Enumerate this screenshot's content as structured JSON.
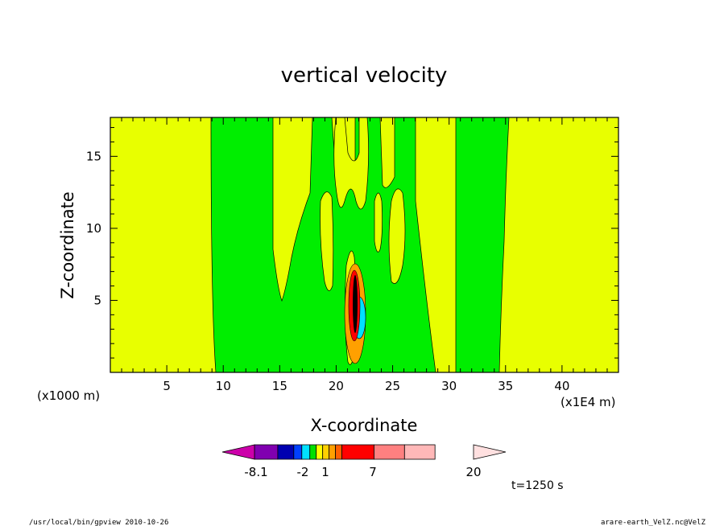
{
  "chart_data": {
    "type": "heatmap",
    "title": "vertical velocity",
    "xlabel": "X-coordinate",
    "ylabel": "Z-coordinate",
    "x_unit_left": "(x1000 m)",
    "x_unit_right": "(x1E4 m)",
    "xlim": [
      0,
      45
    ],
    "ylim": [
      0,
      17.7
    ],
    "x_ticks": [
      5,
      10,
      15,
      20,
      25,
      30,
      35,
      40
    ],
    "y_ticks": [
      5,
      10,
      15
    ],
    "colorbar": {
      "labels": [
        "-8.1",
        "-2",
        "1",
        "7",
        "20"
      ],
      "colors": [
        "#cc00aa",
        "#8000b0",
        "#0000b0",
        "#0040ff",
        "#00e0ff",
        "#00e000",
        "#ffff00",
        "#ffd000",
        "#ffa000",
        "#ff6000",
        "#ff0000",
        "#ff8080",
        "#ffb8b8",
        "#ffe0e0"
      ]
    },
    "regions": [
      {
        "value_class": "weak positive",
        "color": "#e8ff00",
        "x_range": [
          0,
          9.2
        ]
      },
      {
        "value_class": "weak negative",
        "color": "#00ee00",
        "x_range": [
          9.2,
          14.5
        ]
      },
      {
        "value_class": "weak positive",
        "color": "#e8ff00",
        "x_range": [
          14.5,
          19.5
        ],
        "z_range": [
          5,
          17.7
        ]
      },
      {
        "value_class": "weak negative",
        "color": "#00ee00",
        "x_range": [
          19.5,
          29
        ],
        "note": "with embedded yellow lobes"
      },
      {
        "value_class": "weak positive",
        "color": "#e8ff00",
        "x_range": [
          29,
          30.8
        ]
      },
      {
        "value_class": "weak negative",
        "color": "#00ee00",
        "x_range": [
          30.8,
          34.5
        ]
      },
      {
        "value_class": "weak positive",
        "color": "#e8ff00",
        "x_range": [
          34.5,
          45
        ]
      },
      {
        "value_class": "strong updraft core",
        "color": "#ff0000",
        "x_range": [
          21.3,
          22.4
        ],
        "z_range": [
          2,
          8
        ]
      }
    ]
  },
  "annotations": {
    "time": "t=1250 s",
    "footer_left": "/usr/local/bin/gpview  2010-10-26",
    "footer_right": "arare-earth_VelZ.nc@VelZ"
  }
}
